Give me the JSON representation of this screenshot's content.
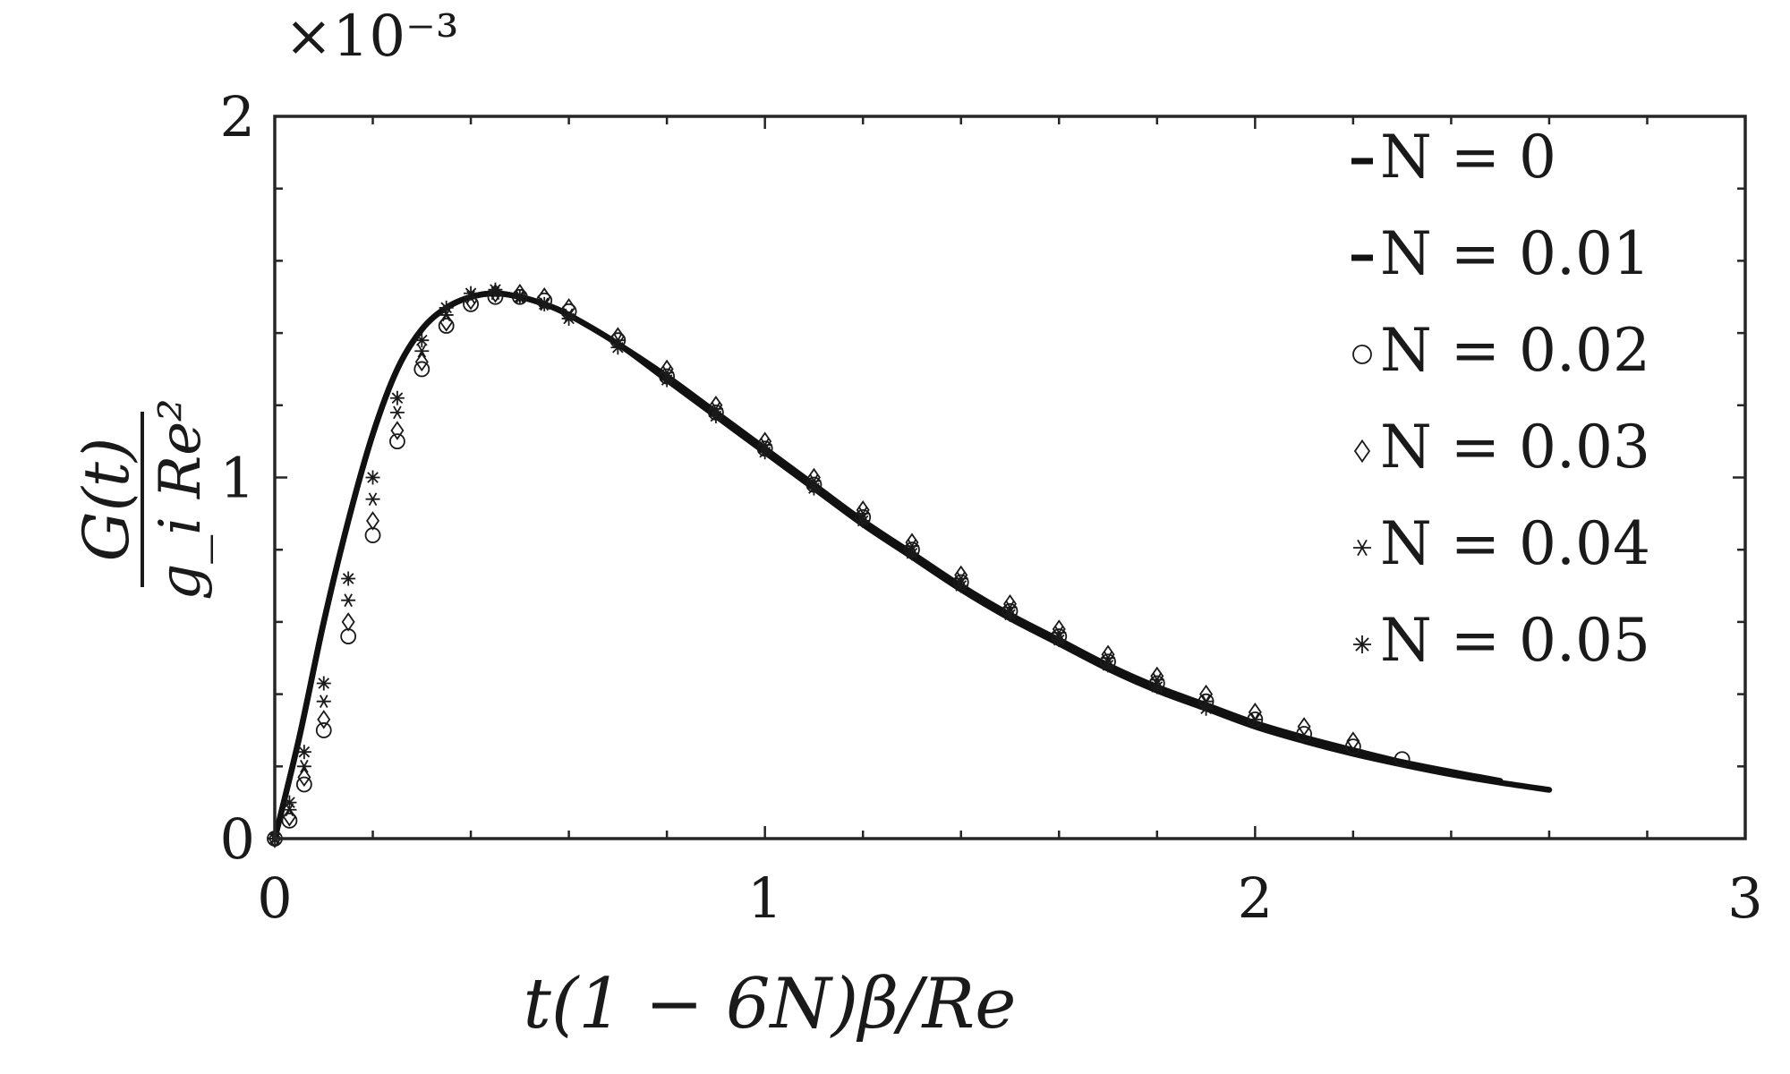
{
  "chart_data": {
    "type": "line",
    "title": "",
    "xlabel": "t(1 − 6N)β/Re",
    "ylabel": {
      "numerator": "G(t)",
      "denominator": "g_i Re²"
    },
    "y_exponent_label": "×10⁻³",
    "xlim": [
      0,
      3
    ],
    "ylim": [
      0,
      2
    ],
    "xticks": [
      0,
      1,
      2,
      3
    ],
    "yticks": [
      0,
      1,
      2
    ],
    "grid": false,
    "legend_position": "top-right",
    "series": [
      {
        "name": "N = 0",
        "marker": "line",
        "legend_glyph": "-",
        "x": [
          0,
          0.05,
          0.1,
          0.15,
          0.2,
          0.25,
          0.3,
          0.35,
          0.4,
          0.45,
          0.5,
          0.55,
          0.6,
          0.7,
          0.8,
          0.9,
          1.0,
          1.1,
          1.2,
          1.3,
          1.4,
          1.5,
          1.6,
          1.7,
          1.8,
          1.9,
          2.0,
          2.1,
          2.2,
          2.3,
          2.4,
          2.5,
          2.6
        ],
        "y": [
          0,
          0.28,
          0.6,
          0.88,
          1.12,
          1.3,
          1.41,
          1.47,
          1.5,
          1.51,
          1.5,
          1.48,
          1.45,
          1.37,
          1.27,
          1.17,
          1.07,
          0.97,
          0.87,
          0.78,
          0.69,
          0.61,
          0.54,
          0.47,
          0.41,
          0.36,
          0.31,
          0.27,
          0.235,
          0.205,
          0.178,
          0.155,
          0.135
        ]
      },
      {
        "name": "N = 0.01",
        "marker": "line",
        "legend_glyph": "-",
        "x": [
          0,
          0.05,
          0.1,
          0.15,
          0.2,
          0.25,
          0.3,
          0.35,
          0.4,
          0.45,
          0.5,
          0.55,
          0.6,
          0.7,
          0.8,
          0.9,
          1.0,
          1.1,
          1.2,
          1.3,
          1.4,
          1.5,
          1.6,
          1.7,
          1.8,
          1.9,
          2.0,
          2.1,
          2.2,
          2.3,
          2.4,
          2.5
        ],
        "y": [
          0,
          0.28,
          0.6,
          0.88,
          1.12,
          1.3,
          1.41,
          1.47,
          1.5,
          1.51,
          1.5,
          1.48,
          1.45,
          1.37,
          1.28,
          1.18,
          1.08,
          0.98,
          0.88,
          0.79,
          0.7,
          0.62,
          0.55,
          0.48,
          0.42,
          0.37,
          0.32,
          0.28,
          0.245,
          0.212,
          0.185,
          0.16
        ]
      },
      {
        "name": "N = 0.02",
        "marker": "circle",
        "legend_glyph": "○",
        "x": [
          0,
          0.03,
          0.06,
          0.1,
          0.15,
          0.2,
          0.25,
          0.3,
          0.35,
          0.4,
          0.45,
          0.5,
          0.55,
          0.6,
          0.7,
          0.8,
          0.9,
          1.0,
          1.1,
          1.2,
          1.3,
          1.4,
          1.5,
          1.6,
          1.7,
          1.8,
          1.9,
          2.0,
          2.1,
          2.2,
          2.3
        ],
        "y": [
          0,
          0.05,
          0.15,
          0.3,
          0.56,
          0.84,
          1.1,
          1.3,
          1.42,
          1.48,
          1.5,
          1.5,
          1.49,
          1.46,
          1.38,
          1.28,
          1.18,
          1.08,
          0.98,
          0.89,
          0.8,
          0.71,
          0.63,
          0.56,
          0.49,
          0.43,
          0.38,
          0.33,
          0.29,
          0.255,
          0.22
        ]
      },
      {
        "name": "N = 0.03",
        "marker": "diamond",
        "legend_glyph": "◇",
        "x": [
          0,
          0.03,
          0.06,
          0.1,
          0.15,
          0.2,
          0.25,
          0.3,
          0.35,
          0.4,
          0.45,
          0.5,
          0.55,
          0.6,
          0.7,
          0.8,
          0.9,
          1.0,
          1.1,
          1.2,
          1.3,
          1.4,
          1.5,
          1.6,
          1.7,
          1.8,
          1.9,
          2.0,
          2.1,
          2.2
        ],
        "y": [
          0,
          0.06,
          0.17,
          0.33,
          0.6,
          0.88,
          1.13,
          1.32,
          1.43,
          1.49,
          1.51,
          1.51,
          1.5,
          1.47,
          1.39,
          1.3,
          1.2,
          1.1,
          1.0,
          0.91,
          0.82,
          0.73,
          0.65,
          0.58,
          0.51,
          0.45,
          0.4,
          0.35,
          0.31,
          0.27
        ]
      },
      {
        "name": "N = 0.04",
        "marker": "asterisk",
        "legend_glyph": "∗",
        "x": [
          0,
          0.03,
          0.06,
          0.1,
          0.15,
          0.2,
          0.25,
          0.3,
          0.35,
          0.4,
          0.45,
          0.5,
          0.55,
          0.6,
          0.7,
          0.8,
          0.9,
          1.0,
          1.1,
          1.2,
          1.3,
          1.4,
          1.5,
          1.6,
          1.7,
          1.8,
          1.9,
          2.0
        ],
        "y": [
          0,
          0.08,
          0.2,
          0.38,
          0.66,
          0.94,
          1.18,
          1.35,
          1.45,
          1.5,
          1.51,
          1.5,
          1.48,
          1.45,
          1.38,
          1.29,
          1.19,
          1.09,
          0.99,
          0.9,
          0.81,
          0.72,
          0.64,
          0.57,
          0.5,
          0.44,
          0.38,
          0.33
        ]
      },
      {
        "name": "N = 0.05",
        "marker": "star",
        "legend_glyph": "⁎",
        "x": [
          0,
          0.03,
          0.06,
          0.1,
          0.15,
          0.2,
          0.25,
          0.3,
          0.35,
          0.4,
          0.45,
          0.5,
          0.55,
          0.6,
          0.7,
          0.8,
          0.9,
          1.0,
          1.1,
          1.2,
          1.3,
          1.4,
          1.5,
          1.6,
          1.7,
          1.8,
          1.9
        ],
        "y": [
          0,
          0.1,
          0.24,
          0.43,
          0.72,
          1.0,
          1.22,
          1.38,
          1.47,
          1.51,
          1.52,
          1.5,
          1.48,
          1.44,
          1.36,
          1.27,
          1.17,
          1.07,
          0.97,
          0.88,
          0.79,
          0.7,
          0.62,
          0.55,
          0.48,
          0.42,
          0.36
        ]
      }
    ]
  }
}
